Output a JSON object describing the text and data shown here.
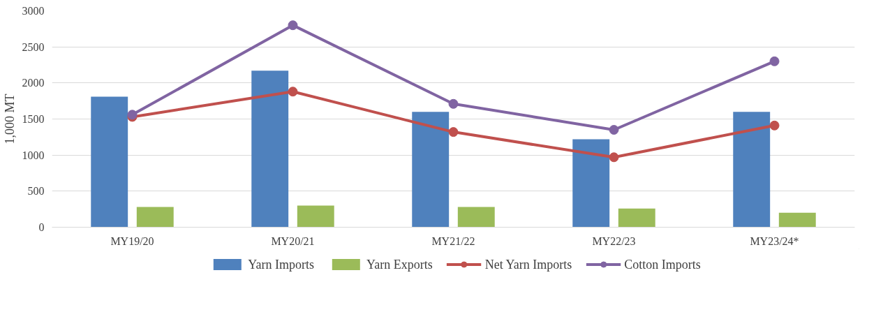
{
  "chart_data": {
    "type": "bar",
    "ylabel": "1,000 MT",
    "categories": [
      "MY19/20",
      "MY20/21",
      "MY21/22",
      "MY22/23",
      "MY23/24*"
    ],
    "series": [
      {
        "name": "Yarn Imports",
        "color": "#4f81bd",
        "values": [
          1810,
          2170,
          1600,
          1220,
          1600
        ]
      },
      {
        "name": "Yarn Exports",
        "color": "#9bbb59",
        "values": [
          280,
          300,
          280,
          260,
          200
        ]
      },
      {
        "name": "Net Yarn Imports",
        "type": "line",
        "color": "#c0504d",
        "values": [
          1530,
          1880,
          1320,
          970,
          1410
        ]
      },
      {
        "name": "Cotton Imports",
        "type": "line",
        "color": "#8064a2",
        "values": [
          1560,
          2800,
          1710,
          1350,
          2300
        ]
      }
    ],
    "ylim": [
      0,
      3000
    ],
    "yticks": [
      0,
      500,
      1000,
      1500,
      2000,
      2500,
      3000
    ],
    "grid": "y",
    "legend": "bottom",
    "marker": "circle",
    "line_style": "solid"
  }
}
